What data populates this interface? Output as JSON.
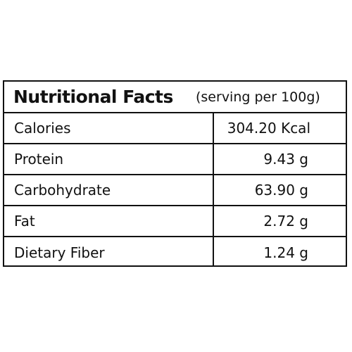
{
  "table": {
    "title": "Nutritional Facts",
    "subtitle": "(serving per 100g)",
    "rows": [
      {
        "label": "Calories",
        "value": "304.20 Kcal"
      },
      {
        "label": "Protein",
        "value": "9.43 g"
      },
      {
        "label": "Carbohydrate",
        "value": "63.90 g"
      },
      {
        "label": "Fat",
        "value": "2.72 g"
      },
      {
        "label": "Dietary Fiber",
        "value": "1.24 g"
      }
    ]
  }
}
